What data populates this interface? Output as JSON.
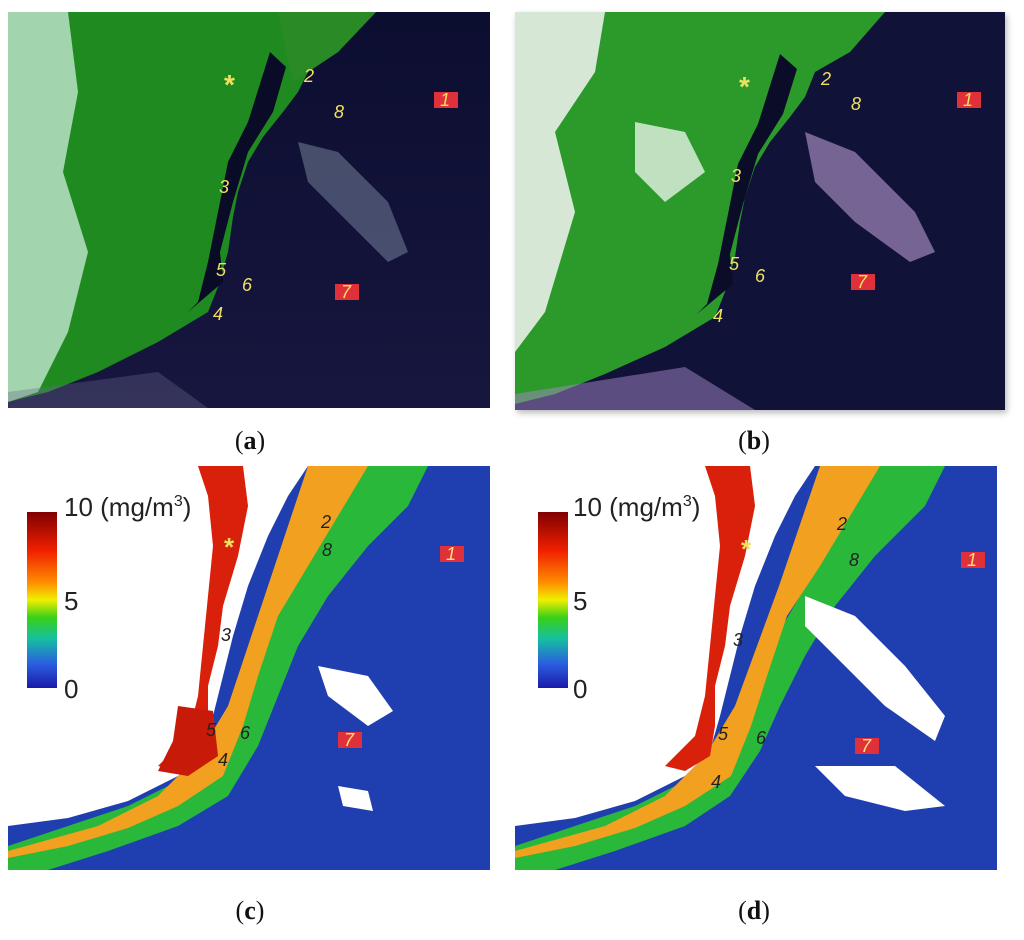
{
  "panels": [
    {
      "id": "a",
      "caption": "a",
      "type": "true-color"
    },
    {
      "id": "b",
      "caption": "b",
      "type": "true-color"
    },
    {
      "id": "c",
      "caption": "c",
      "type": "chlorophyll"
    },
    {
      "id": "d",
      "caption": "d",
      "type": "chlorophyll"
    }
  ],
  "stations": [
    "1",
    "2",
    "3",
    "4",
    "5",
    "6",
    "7",
    "8"
  ],
  "marker_symbol": "*",
  "legend": {
    "max_label": "10 (mg/m",
    "superscript": "3",
    "close": ")",
    "mid_label": "5",
    "min_label": "0",
    "colors": [
      "#1a1aa8",
      "#2a60e0",
      "#16c0a0",
      "#38d018",
      "#f0f000",
      "#ff8c00",
      "#f02000",
      "#800000"
    ]
  },
  "colors": {
    "land_green": "#1f8a1f",
    "ocean_dark": "#0d0f33",
    "ocean_blue": "#1f3fb0",
    "label_yellow": "#f0e060",
    "station_box": "#e0303a"
  }
}
